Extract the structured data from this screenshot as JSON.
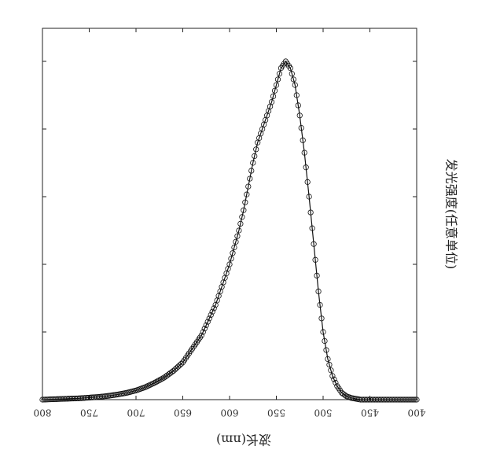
{
  "chart_data": {
    "type": "scatter",
    "title": "",
    "xlabel": "波长(nm)",
    "ylabel": "发光强度(任意单位)",
    "x_reversed": true,
    "xlim": [
      400,
      800
    ],
    "x_ticks": [
      800,
      750,
      700,
      650,
      600,
      550,
      500,
      450,
      400
    ],
    "ylim": [
      0,
      1.0
    ],
    "y_tick_labels_shown": false,
    "grid": false,
    "legend": "none",
    "marker": "open-circle",
    "fit_line": true,
    "series": [
      {
        "x": [
          400,
          410,
          420,
          430,
          440,
          450,
          460,
          470,
          475,
          480,
          485,
          490,
          495,
          500,
          505,
          510,
          515,
          520,
          525,
          530,
          535,
          540,
          545,
          550,
          555,
          560,
          565,
          570,
          575,
          580,
          585,
          590,
          595,
          600,
          605,
          610,
          615,
          620,
          625,
          630,
          635,
          640,
          650,
          660,
          670,
          680,
          690,
          700,
          710,
          720,
          730,
          740,
          750,
          760,
          770,
          780,
          790,
          800
        ],
        "values": [
          0.0,
          0.0,
          0.0,
          0.0,
          0.0,
          0.0,
          0.0,
          0.005,
          0.01,
          0.02,
          0.04,
          0.07,
          0.12,
          0.2,
          0.32,
          0.46,
          0.6,
          0.73,
          0.84,
          0.93,
          0.98,
          1.0,
          0.98,
          0.93,
          0.88,
          0.84,
          0.8,
          0.76,
          0.7,
          0.63,
          0.56,
          0.5,
          0.45,
          0.4,
          0.36,
          0.32,
          0.28,
          0.25,
          0.22,
          0.19,
          0.17,
          0.15,
          0.11,
          0.085,
          0.065,
          0.05,
          0.037,
          0.027,
          0.02,
          0.015,
          0.011,
          0.008,
          0.006,
          0.004,
          0.003,
          0.002,
          0.001,
          0.0
        ]
      }
    ]
  }
}
